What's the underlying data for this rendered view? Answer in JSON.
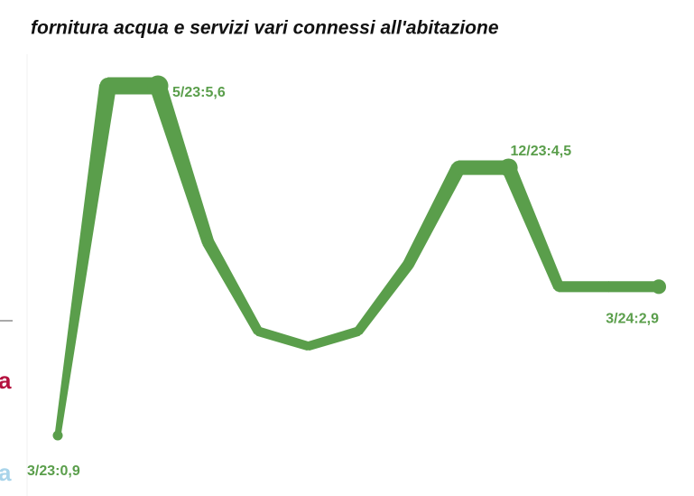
{
  "chart_data": {
    "type": "line",
    "title": "fornitura acqua e servizi vari connessi all'abitazione",
    "categories": [
      null,
      null,
      null,
      null,
      null,
      null,
      null,
      null,
      null,
      null,
      null,
      null,
      null
    ],
    "series": [
      {
        "name": null,
        "color": "#5a9e4b",
        "values": [
          0.9,
          5.6,
          5.6,
          3.5,
          2.3,
          2.1,
          2.3,
          3.2,
          4.5,
          4.5,
          2.9,
          2.9,
          2.9
        ],
        "value_labels": [
          "3/23:0,9",
          null,
          "5/23:5,6",
          null,
          null,
          null,
          null,
          null,
          null,
          "12/23:4,5",
          null,
          null,
          "3/24:2,9"
        ]
      }
    ],
    "ylim": [
      0.9,
      5.6
    ],
    "side_labels": [
      {
        "text": "a",
        "color": "#b5123f"
      },
      {
        "text": "a",
        "color": "#a9d4ea"
      }
    ]
  }
}
